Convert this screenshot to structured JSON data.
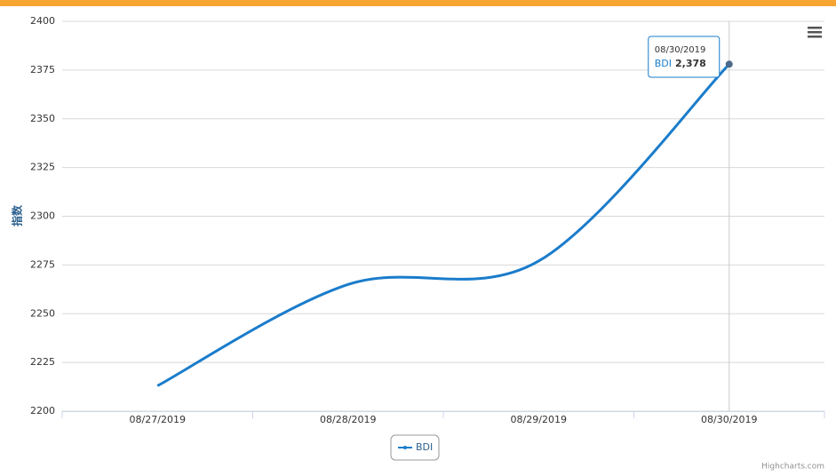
{
  "chart_data": {
    "type": "line",
    "y_label": "指数",
    "categories": [
      "08/27/2019",
      "08/28/2019",
      "08/29/2019",
      "08/30/2019"
    ],
    "series": [
      {
        "name": "BDI",
        "color": "#1a7ccb",
        "values": [
          2213,
          2265,
          2277,
          2378
        ],
        "value_labels": [
          null,
          null,
          null,
          "2,378"
        ]
      }
    ],
    "ylim": [
      2200,
      2400
    ],
    "yticks": [
      2200,
      2225,
      2250,
      2275,
      2300,
      2325,
      2350,
      2375,
      2400
    ],
    "grid": true,
    "tooltip_index": 3,
    "credits": "Highcharts.com"
  }
}
